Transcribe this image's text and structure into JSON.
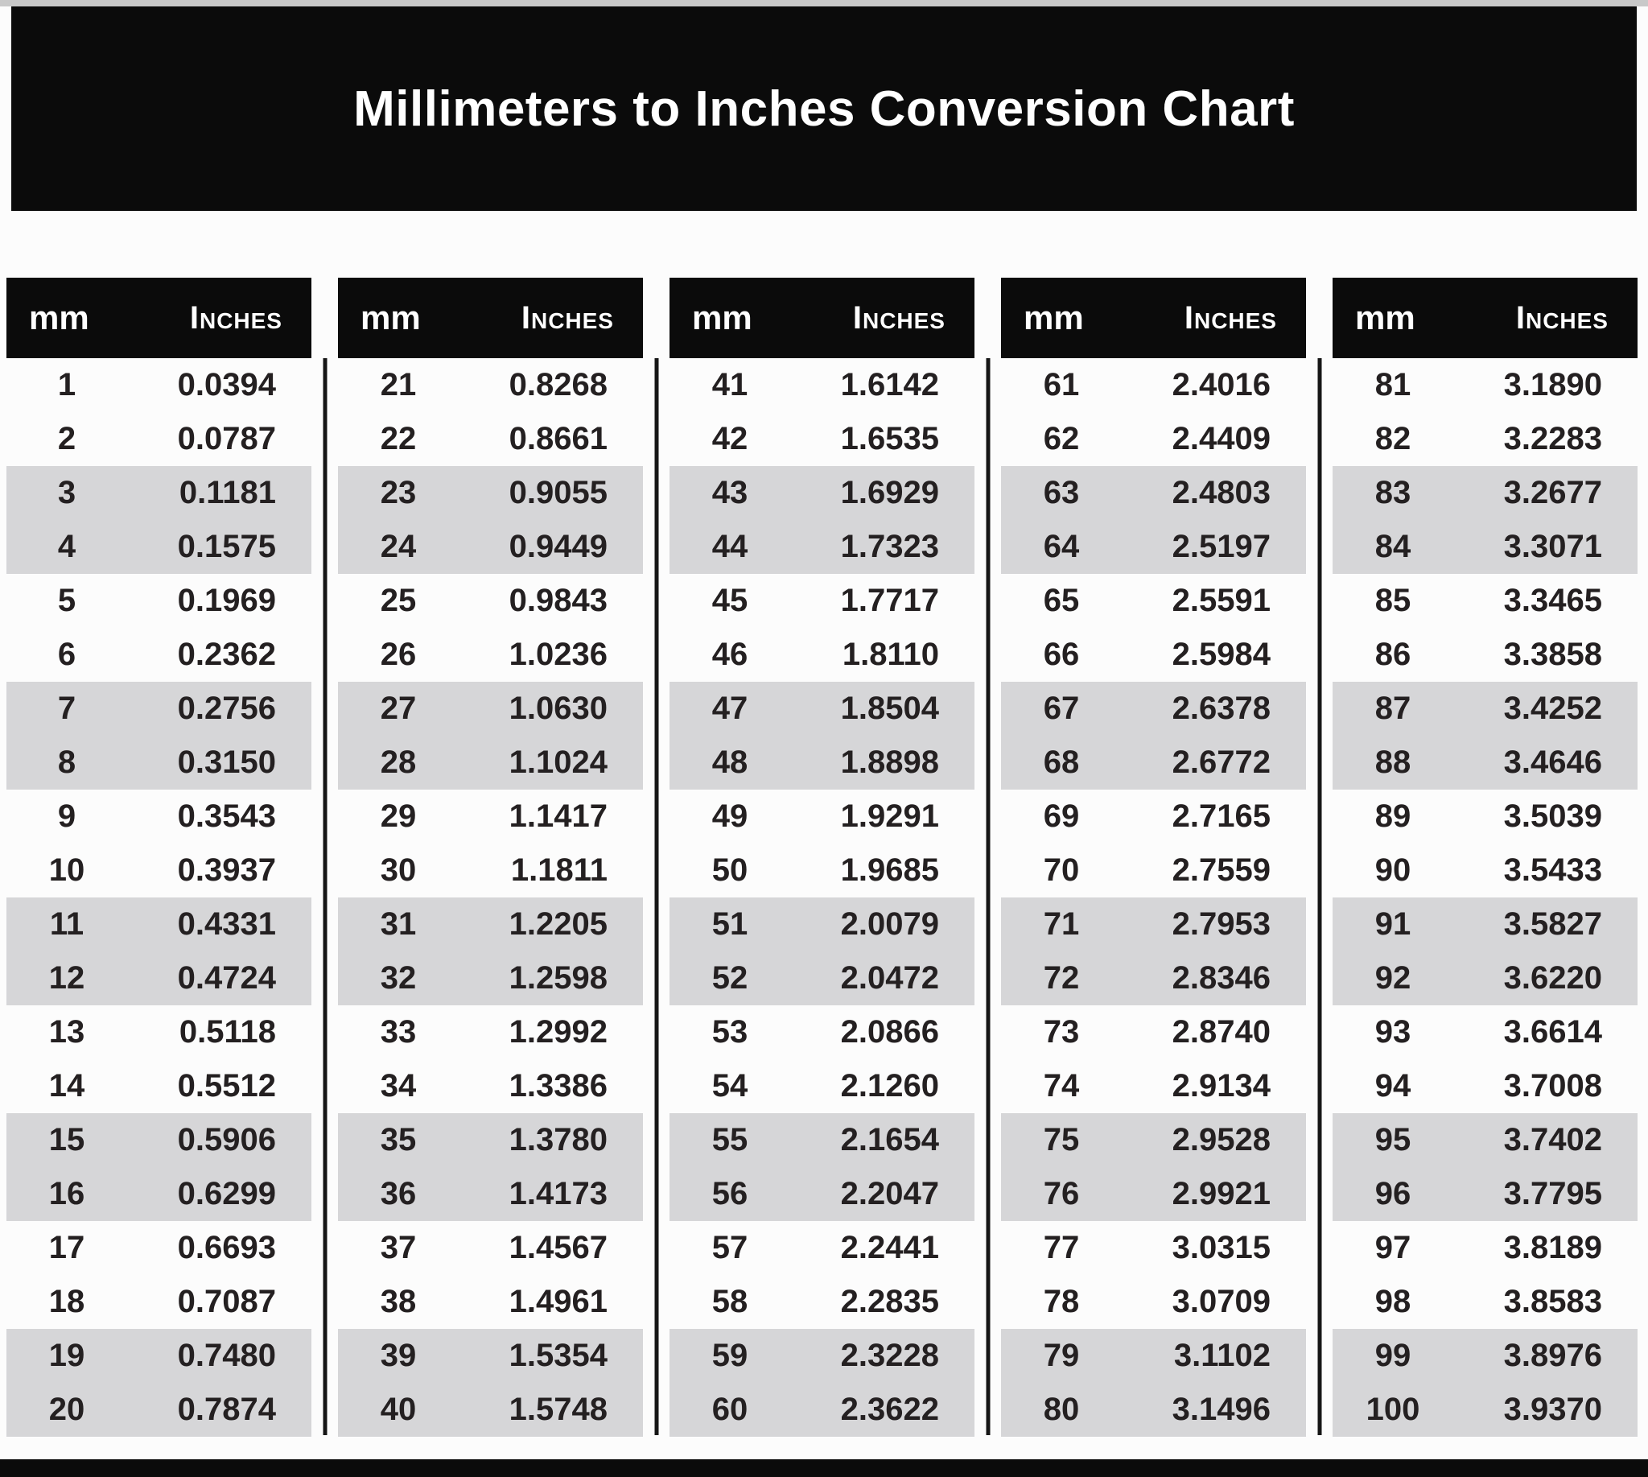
{
  "title": "Millimeters to Inches Conversion Chart",
  "colors": {
    "banner": "#0b0b0b",
    "stripe": "#d6d6d8",
    "row_text": "#242021",
    "header_text": "#ffffff",
    "background": "#fcfcfc"
  },
  "table": {
    "mm_header": "mm",
    "inches_header": "Inches"
  },
  "chart_data": {
    "type": "table",
    "title": "Millimeters to Inches Conversion Chart",
    "columns": [
      "mm",
      "Inches"
    ],
    "group_size": 20,
    "layout": "5 column groups of 20 rows, pairs of rows alternately shaded",
    "rows": [
      [
        1,
        "0.0394"
      ],
      [
        2,
        "0.0787"
      ],
      [
        3,
        "0.1181"
      ],
      [
        4,
        "0.1575"
      ],
      [
        5,
        "0.1969"
      ],
      [
        6,
        "0.2362"
      ],
      [
        7,
        "0.2756"
      ],
      [
        8,
        "0.3150"
      ],
      [
        9,
        "0.3543"
      ],
      [
        10,
        "0.3937"
      ],
      [
        11,
        "0.4331"
      ],
      [
        12,
        "0.4724"
      ],
      [
        13,
        "0.5118"
      ],
      [
        14,
        "0.5512"
      ],
      [
        15,
        "0.5906"
      ],
      [
        16,
        "0.6299"
      ],
      [
        17,
        "0.6693"
      ],
      [
        18,
        "0.7087"
      ],
      [
        19,
        "0.7480"
      ],
      [
        20,
        "0.7874"
      ],
      [
        21,
        "0.8268"
      ],
      [
        22,
        "0.8661"
      ],
      [
        23,
        "0.9055"
      ],
      [
        24,
        "0.9449"
      ],
      [
        25,
        "0.9843"
      ],
      [
        26,
        "1.0236"
      ],
      [
        27,
        "1.0630"
      ],
      [
        28,
        "1.1024"
      ],
      [
        29,
        "1.1417"
      ],
      [
        30,
        "1.1811"
      ],
      [
        31,
        "1.2205"
      ],
      [
        32,
        "1.2598"
      ],
      [
        33,
        "1.2992"
      ],
      [
        34,
        "1.3386"
      ],
      [
        35,
        "1.3780"
      ],
      [
        36,
        "1.4173"
      ],
      [
        37,
        "1.4567"
      ],
      [
        38,
        "1.4961"
      ],
      [
        39,
        "1.5354"
      ],
      [
        40,
        "1.5748"
      ],
      [
        41,
        "1.6142"
      ],
      [
        42,
        "1.6535"
      ],
      [
        43,
        "1.6929"
      ],
      [
        44,
        "1.7323"
      ],
      [
        45,
        "1.7717"
      ],
      [
        46,
        "1.8110"
      ],
      [
        47,
        "1.8504"
      ],
      [
        48,
        "1.8898"
      ],
      [
        49,
        "1.9291"
      ],
      [
        50,
        "1.9685"
      ],
      [
        51,
        "2.0079"
      ],
      [
        52,
        "2.0472"
      ],
      [
        53,
        "2.0866"
      ],
      [
        54,
        "2.1260"
      ],
      [
        55,
        "2.1654"
      ],
      [
        56,
        "2.2047"
      ],
      [
        57,
        "2.2441"
      ],
      [
        58,
        "2.2835"
      ],
      [
        59,
        "2.3228"
      ],
      [
        60,
        "2.3622"
      ],
      [
        61,
        "2.4016"
      ],
      [
        62,
        "2.4409"
      ],
      [
        63,
        "2.4803"
      ],
      [
        64,
        "2.5197"
      ],
      [
        65,
        "2.5591"
      ],
      [
        66,
        "2.5984"
      ],
      [
        67,
        "2.6378"
      ],
      [
        68,
        "2.6772"
      ],
      [
        69,
        "2.7165"
      ],
      [
        70,
        "2.7559"
      ],
      [
        71,
        "2.7953"
      ],
      [
        72,
        "2.8346"
      ],
      [
        73,
        "2.8740"
      ],
      [
        74,
        "2.9134"
      ],
      [
        75,
        "2.9528"
      ],
      [
        76,
        "2.9921"
      ],
      [
        77,
        "3.0315"
      ],
      [
        78,
        "3.0709"
      ],
      [
        79,
        "3.1102"
      ],
      [
        80,
        "3.1496"
      ],
      [
        81,
        "3.1890"
      ],
      [
        82,
        "3.2283"
      ],
      [
        83,
        "3.2677"
      ],
      [
        84,
        "3.3071"
      ],
      [
        85,
        "3.3465"
      ],
      [
        86,
        "3.3858"
      ],
      [
        87,
        "3.4252"
      ],
      [
        88,
        "3.4646"
      ],
      [
        89,
        "3.5039"
      ],
      [
        90,
        "3.5433"
      ],
      [
        91,
        "3.5827"
      ],
      [
        92,
        "3.6220"
      ],
      [
        93,
        "3.6614"
      ],
      [
        94,
        "3.7008"
      ],
      [
        95,
        "3.7402"
      ],
      [
        96,
        "3.7795"
      ],
      [
        97,
        "3.8189"
      ],
      [
        98,
        "3.8583"
      ],
      [
        99,
        "3.8976"
      ],
      [
        100,
        "3.9370"
      ]
    ]
  }
}
